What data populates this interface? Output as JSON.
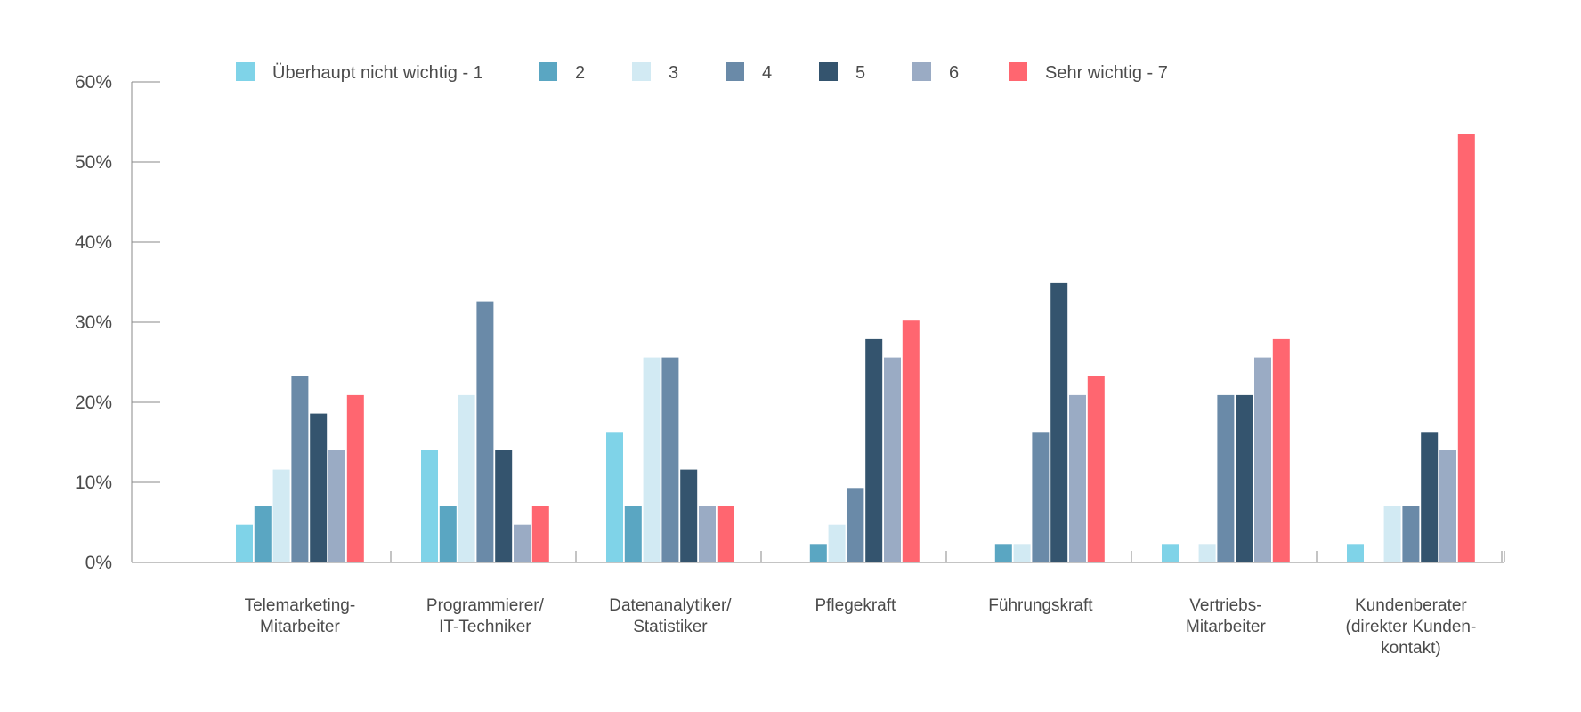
{
  "chart_data": {
    "type": "bar",
    "categories": [
      [
        "Telemarketing-",
        "Mitarbeiter"
      ],
      [
        "Programmierer/",
        "IT-Techniker"
      ],
      [
        "Datenanalytiker/",
        "Statistiker"
      ],
      [
        "Pflegekraft"
      ],
      [
        "Führungskraft"
      ],
      [
        "Vertriebs-",
        "Mitarbeiter"
      ],
      [
        "Kundenberater",
        "(direkter Kunden-",
        "kontakt)"
      ]
    ],
    "series": [
      {
        "name": "Überhaupt nicht wichtig  - 1",
        "color": "#7fd3e8",
        "values": [
          4.7,
          14.0,
          16.3,
          0,
          0,
          2.3,
          2.3
        ]
      },
      {
        "name": "2",
        "color": "#5aa6c2",
        "values": [
          7.0,
          7.0,
          7.0,
          2.3,
          2.3,
          0,
          0
        ]
      },
      {
        "name": "3",
        "color": "#d2eaf3",
        "values": [
          11.6,
          20.9,
          25.6,
          4.7,
          2.3,
          2.3,
          7.0
        ]
      },
      {
        "name": "4",
        "color": "#6a8aa8",
        "values": [
          23.3,
          32.6,
          25.6,
          9.3,
          16.3,
          20.9,
          7.0
        ]
      },
      {
        "name": "5",
        "color": "#34546e",
        "values": [
          18.6,
          14.0,
          11.6,
          27.9,
          34.9,
          20.9,
          16.3
        ]
      },
      {
        "name": "6",
        "color": "#9aabc4",
        "values": [
          14.0,
          4.7,
          7.0,
          25.6,
          20.9,
          25.6,
          14.0
        ]
      },
      {
        "name": "Sehr wichtig - 7",
        "color": "#ff6670",
        "values": [
          20.9,
          7.0,
          7.0,
          30.2,
          23.3,
          27.9,
          53.5
        ]
      }
    ],
    "yticks": [
      "0%",
      "10%",
      "20%",
      "30%",
      "40%",
      "50%",
      "60%"
    ],
    "ylim": [
      0,
      60
    ],
    "legend_position": "top",
    "grid": false
  }
}
